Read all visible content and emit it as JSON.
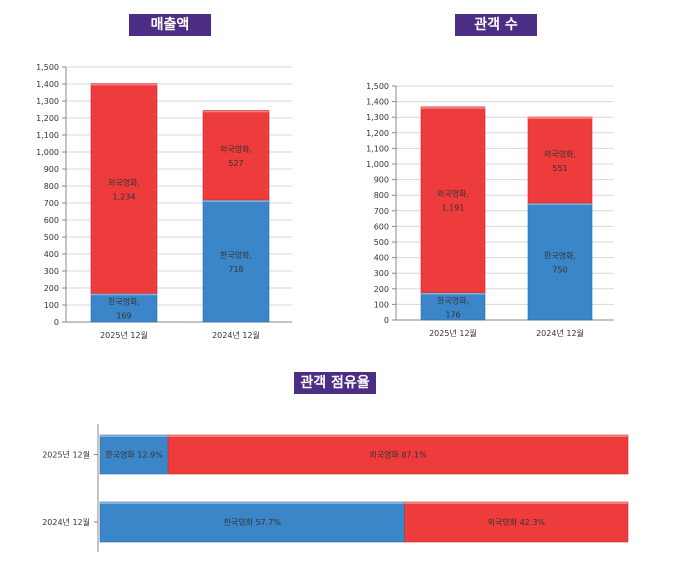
{
  "titles": {
    "revenue": "매출액",
    "admissions": "관객 수",
    "share": "관객 점유율"
  },
  "colors": {
    "korean": "#3b86c8",
    "foreign": "#ee3b3b",
    "title_bg": "#4b2d83"
  },
  "chart_data": [
    {
      "type": "bar",
      "stacked": true,
      "title": "매출액",
      "categories": [
        "2025년 12월",
        "2024년 12월"
      ],
      "series": [
        {
          "name": "한국영화",
          "values": [
            169,
            718
          ]
        },
        {
          "name": "외국영화",
          "values": [
            1234,
            527
          ]
        }
      ],
      "ylim": [
        0,
        1500
      ],
      "yticks": [
        0,
        100,
        200,
        300,
        400,
        500,
        600,
        700,
        800,
        900,
        1000,
        1100,
        1200,
        1300,
        1400,
        1500
      ],
      "ytick_labels": [
        "0",
        "100",
        "200",
        "300",
        "400",
        "500",
        "600",
        "700",
        "800",
        "900",
        "1,000",
        "1,100",
        "1,200",
        "1,300",
        "1,400",
        "1,500"
      ],
      "value_labels": [
        [
          "169",
          "718"
        ],
        [
          "1,234",
          "527"
        ]
      ],
      "grid": true
    },
    {
      "type": "bar",
      "stacked": true,
      "title": "관객 수",
      "categories": [
        "2025년 12월",
        "2024년 12월"
      ],
      "series": [
        {
          "name": "한국영화",
          "values": [
            176,
            750
          ]
        },
        {
          "name": "외국영화",
          "values": [
            1191,
            551
          ]
        }
      ],
      "ylim": [
        0,
        1500
      ],
      "yticks": [
        0,
        100,
        200,
        300,
        400,
        500,
        600,
        700,
        800,
        900,
        1000,
        1100,
        1200,
        1300,
        1400,
        1500
      ],
      "ytick_labels": [
        "0",
        "100",
        "200",
        "300",
        "400",
        "500",
        "600",
        "700",
        "800",
        "900",
        "1,000",
        "1,100",
        "1,200",
        "1,300",
        "1,400",
        "1,500"
      ],
      "value_labels": [
        [
          "176",
          "750"
        ],
        [
          "1,191",
          "551"
        ]
      ],
      "grid": true
    },
    {
      "type": "bar",
      "orientation": "horizontal",
      "stacked": true,
      "percent": true,
      "title": "관객 점유율",
      "categories": [
        "2025년 12월",
        "2024년 12월"
      ],
      "series": [
        {
          "name": "한국영화",
          "values": [
            12.9,
            57.7
          ]
        },
        {
          "name": "외국영화",
          "values": [
            87.1,
            42.3
          ]
        }
      ],
      "value_labels": [
        [
          "12.9%",
          "57.7%"
        ],
        [
          "87.1%",
          "42.3%"
        ]
      ]
    }
  ]
}
